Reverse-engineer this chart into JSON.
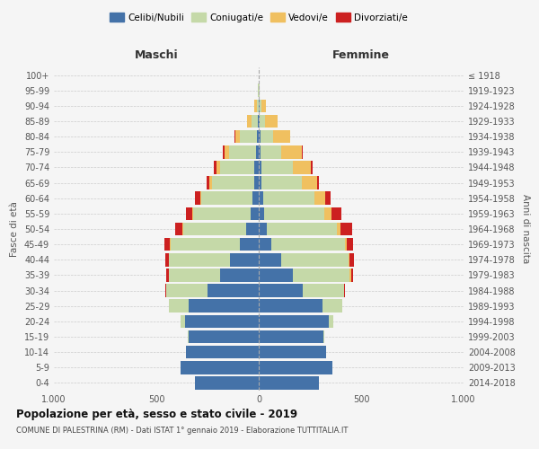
{
  "age_groups": [
    "0-4",
    "5-9",
    "10-14",
    "15-19",
    "20-24",
    "25-29",
    "30-34",
    "35-39",
    "40-44",
    "45-49",
    "50-54",
    "55-59",
    "60-64",
    "65-69",
    "70-74",
    "75-79",
    "80-84",
    "85-89",
    "90-94",
    "95-99",
    "100+"
  ],
  "birth_years": [
    "2014-2018",
    "2009-2013",
    "2004-2008",
    "1999-2003",
    "1994-1998",
    "1989-1993",
    "1984-1988",
    "1979-1983",
    "1974-1978",
    "1969-1973",
    "1964-1968",
    "1959-1963",
    "1954-1958",
    "1949-1953",
    "1944-1948",
    "1939-1943",
    "1934-1938",
    "1929-1933",
    "1924-1928",
    "1919-1923",
    "≤ 1918"
  ],
  "colors": {
    "celibi": "#4472a8",
    "coniugati": "#c5d9a8",
    "vedovi": "#f0c060",
    "divorziati": "#cc2020"
  },
  "males": {
    "celibi": [
      310,
      380,
      355,
      340,
      360,
      340,
      250,
      190,
      140,
      90,
      60,
      40,
      30,
      20,
      20,
      15,
      10,
      5,
      2,
      1,
      0
    ],
    "coniugati": [
      0,
      0,
      0,
      5,
      20,
      100,
      200,
      250,
      300,
      340,
      310,
      280,
      250,
      210,
      170,
      130,
      80,
      30,
      8,
      2,
      0
    ],
    "vedovi": [
      0,
      0,
      0,
      0,
      0,
      0,
      0,
      0,
      0,
      5,
      5,
      5,
      5,
      10,
      15,
      20,
      25,
      20,
      10,
      2,
      0
    ],
    "divorziati": [
      0,
      0,
      0,
      0,
      0,
      0,
      5,
      10,
      15,
      25,
      35,
      30,
      25,
      15,
      15,
      10,
      5,
      0,
      0,
      0,
      0
    ]
  },
  "females": {
    "nubili": [
      295,
      360,
      330,
      315,
      340,
      310,
      215,
      165,
      110,
      60,
      40,
      25,
      20,
      15,
      15,
      10,
      10,
      5,
      3,
      1,
      0
    ],
    "coniugate": [
      0,
      0,
      0,
      5,
      25,
      100,
      200,
      280,
      330,
      360,
      340,
      295,
      250,
      195,
      150,
      100,
      60,
      25,
      8,
      2,
      0
    ],
    "vedove": [
      0,
      0,
      0,
      0,
      0,
      0,
      0,
      5,
      5,
      10,
      20,
      35,
      55,
      75,
      90,
      100,
      85,
      60,
      25,
      3,
      0
    ],
    "divorziate": [
      0,
      0,
      0,
      0,
      0,
      0,
      5,
      10,
      20,
      30,
      55,
      50,
      25,
      10,
      10,
      5,
      0,
      0,
      0,
      0,
      0
    ]
  },
  "title": "Popolazione per età, sesso e stato civile - 2019",
  "subtitle": "COMUNE DI PALESTRINA (RM) - Dati ISTAT 1° gennaio 2019 - Elaborazione TUTTITALIA.IT",
  "xlabel_left": "Maschi",
  "xlabel_right": "Femmine",
  "ylabel_left": "Fasce di età",
  "ylabel_right": "Anni di nascita",
  "xlim": 1000,
  "xticks": [
    -1000,
    -500,
    0,
    500,
    1000
  ],
  "xticklabels": [
    "1.000",
    "500",
    "0",
    "500",
    "1.000"
  ],
  "legend_labels": [
    "Celibi/Nubili",
    "Coniugati/e",
    "Vedovi/e",
    "Divorziati/e"
  ],
  "bg_color": "#f5f5f5",
  "bar_height": 0.85
}
